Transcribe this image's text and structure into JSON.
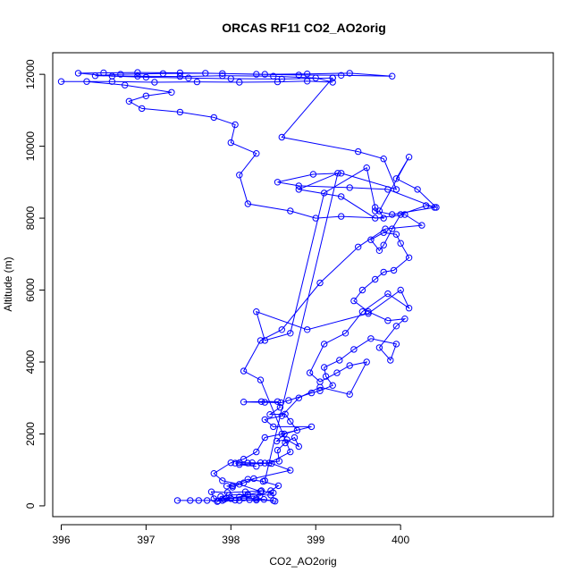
{
  "chart_data": {
    "type": "line",
    "title": "ORCAS RF11 CO2_AO2orig",
    "xlabel": "CO2_AO2orig",
    "ylabel": "Altitude (m)",
    "xlim": [
      395.9,
      401.8
    ],
    "ylim": [
      -300,
      12600
    ],
    "xticks": [
      396,
      397,
      398,
      399,
      400
    ],
    "yticks": [
      0,
      2000,
      4000,
      6000,
      8000,
      10000,
      12000
    ],
    "grid": false,
    "legend": "none",
    "line_color": "#0000ff",
    "series": [
      {
        "style": "line+points",
        "points": [
          [
            397.37,
            150
          ],
          [
            397.52,
            150
          ],
          [
            397.62,
            150
          ],
          [
            397.72,
            150
          ],
          [
            397.9,
            150
          ],
          [
            398.05,
            160
          ],
          [
            398.22,
            170
          ],
          [
            398.39,
            180
          ],
          [
            398.52,
            130
          ],
          [
            398.3,
            200
          ],
          [
            398.15,
            220
          ],
          [
            397.95,
            210
          ],
          [
            397.8,
            200
          ],
          [
            397.77,
            390
          ],
          [
            397.96,
            370
          ],
          [
            398.17,
            390
          ],
          [
            398.36,
            420
          ],
          [
            398.5,
            360
          ],
          [
            398.47,
            300
          ],
          [
            398.2,
            320
          ],
          [
            397.98,
            300
          ],
          [
            397.88,
            260
          ],
          [
            397.84,
            120
          ],
          [
            397.92,
            180
          ],
          [
            398.1,
            250
          ],
          [
            398.34,
            280
          ],
          [
            398.47,
            420
          ],
          [
            398.56,
            560
          ],
          [
            398.38,
            680
          ],
          [
            398.2,
            740
          ],
          [
            398.02,
            560
          ],
          [
            397.95,
            550
          ],
          [
            398.02,
            520
          ],
          [
            398.15,
            640
          ],
          [
            398.27,
            760
          ],
          [
            398.7,
            990
          ],
          [
            398.48,
            1180
          ],
          [
            398.35,
            1200
          ],
          [
            398.2,
            1190
          ],
          [
            398.05,
            1190
          ],
          [
            398.1,
            1200
          ],
          [
            398.25,
            1200
          ],
          [
            398.4,
            1190
          ],
          [
            398.57,
            1240
          ],
          [
            398.55,
            1550
          ],
          [
            398.64,
            1750
          ],
          [
            398.75,
            1900
          ],
          [
            398.8,
            1650
          ],
          [
            398.66,
            1840
          ],
          [
            398.54,
            1800
          ],
          [
            398.63,
            2000
          ],
          [
            398.78,
            2100
          ],
          [
            398.7,
            2350
          ],
          [
            398.64,
            2550
          ],
          [
            398.46,
            2540
          ],
          [
            398.58,
            2740
          ],
          [
            398.55,
            2900
          ],
          [
            398.36,
            2900
          ],
          [
            398.15,
            2890
          ],
          [
            398.4,
            2880
          ],
          [
            398.59,
            2870
          ],
          [
            398.68,
            2930
          ],
          [
            398.95,
            3140
          ],
          [
            399.05,
            3200
          ],
          [
            399.2,
            3350
          ],
          [
            399.12,
            3600
          ],
          [
            399.1,
            3850
          ],
          [
            399.28,
            4050
          ],
          [
            399.45,
            4350
          ],
          [
            399.65,
            4650
          ],
          [
            399.95,
            4500
          ],
          [
            399.88,
            4050
          ],
          [
            399.75,
            4400
          ],
          [
            399.95,
            5000
          ],
          [
            400.05,
            5200
          ],
          [
            399.85,
            5150
          ],
          [
            399.62,
            5400
          ],
          [
            399.45,
            5700
          ],
          [
            399.55,
            6000
          ],
          [
            399.7,
            6300
          ],
          [
            399.8,
            6500
          ],
          [
            399.92,
            6550
          ],
          [
            400.1,
            6900
          ],
          [
            400.0,
            7300
          ],
          [
            399.95,
            7550
          ],
          [
            399.8,
            7600
          ],
          [
            399.65,
            7400
          ],
          [
            399.75,
            7100
          ],
          [
            399.8,
            7250
          ],
          [
            399.9,
            7700
          ],
          [
            400.0,
            8100
          ],
          [
            400.3,
            8350
          ],
          [
            400.42,
            8300
          ],
          [
            400.2,
            8800
          ],
          [
            399.95,
            9100
          ],
          [
            400.1,
            9700
          ],
          [
            399.75,
            8200
          ],
          [
            399.8,
            8000
          ],
          [
            399.3,
            8050
          ],
          [
            399.0,
            8000
          ],
          [
            398.7,
            8200
          ],
          [
            398.2,
            8400
          ],
          [
            398.1,
            9200
          ],
          [
            398.3,
            9800
          ],
          [
            398.0,
            10100
          ],
          [
            398.05,
            10600
          ],
          [
            397.8,
            10800
          ],
          [
            397.4,
            10950
          ],
          [
            396.95,
            11050
          ],
          [
            396.8,
            11250
          ],
          [
            397.0,
            11400
          ],
          [
            397.3,
            11500
          ],
          [
            396.75,
            11700
          ],
          [
            396.3,
            11800
          ],
          [
            396.0,
            11800
          ],
          [
            396.6,
            11800
          ],
          [
            397.1,
            11780
          ],
          [
            397.6,
            11790
          ],
          [
            398.1,
            11780
          ],
          [
            398.55,
            11790
          ],
          [
            398.9,
            11810
          ],
          [
            399.2,
            11780
          ],
          [
            399.0,
            11900
          ],
          [
            398.5,
            11950
          ],
          [
            397.9,
            11960
          ],
          [
            397.4,
            11940
          ],
          [
            396.9,
            11950
          ],
          [
            396.4,
            11960
          ],
          [
            396.7,
            12000
          ],
          [
            397.2,
            12020
          ],
          [
            397.7,
            12030
          ],
          [
            398.3,
            12000
          ],
          [
            398.8,
            11980
          ],
          [
            399.3,
            11970
          ],
          [
            399.9,
            11950
          ],
          [
            399.4,
            12030
          ],
          [
            398.9,
            12010
          ],
          [
            398.4,
            12000
          ],
          [
            397.9,
            12020
          ],
          [
            397.4,
            12040
          ],
          [
            396.9,
            12050
          ],
          [
            396.5,
            12040
          ],
          [
            396.2,
            12030
          ],
          [
            396.6,
            11950
          ],
          [
            397.0,
            11920
          ],
          [
            397.5,
            11900
          ],
          [
            398.0,
            11880
          ],
          [
            398.6,
            11870
          ],
          [
            399.2,
            11900
          ]
        ]
      },
      {
        "style": "line+points",
        "points": [
          [
            399.2,
            11900
          ],
          [
            398.6,
            10250
          ],
          [
            399.5,
            9850
          ],
          [
            399.8,
            9650
          ],
          [
            399.95,
            8800
          ],
          [
            399.3,
            9250
          ],
          [
            398.97,
            9220
          ],
          [
            398.55,
            9000
          ],
          [
            398.8,
            8900
          ],
          [
            399.4,
            8850
          ],
          [
            399.85,
            8800
          ],
          [
            400.4,
            8300
          ],
          [
            399.9,
            8100
          ],
          [
            399.7,
            8200
          ],
          [
            399.7,
            8300
          ],
          [
            399.6,
            9400
          ],
          [
            399.1,
            8700
          ],
          [
            398.7,
            4800
          ],
          [
            398.4,
            4600
          ],
          [
            398.3,
            5400
          ],
          [
            398.9,
            4900
          ],
          [
            399.62,
            5350
          ],
          [
            400.0,
            6000
          ],
          [
            400.1,
            5500
          ],
          [
            399.85,
            5900
          ],
          [
            399.55,
            5400
          ],
          [
            399.35,
            4800
          ],
          [
            399.1,
            4500
          ],
          [
            398.93,
            3700
          ],
          [
            399.05,
            3450
          ],
          [
            399.25,
            3700
          ],
          [
            399.4,
            3900
          ],
          [
            399.6,
            4000
          ],
          [
            399.4,
            3100
          ],
          [
            399.05,
            3300
          ],
          [
            398.8,
            3000
          ],
          [
            398.6,
            2500
          ],
          [
            398.4,
            2400
          ],
          [
            398.5,
            2200
          ],
          [
            398.95,
            2200
          ],
          [
            398.6,
            2000
          ],
          [
            398.4,
            1900
          ],
          [
            398.3,
            1500
          ],
          [
            398.15,
            1300
          ],
          [
            398.0,
            1200
          ],
          [
            397.8,
            900
          ],
          [
            397.9,
            700
          ],
          [
            398.1,
            600
          ],
          [
            398.35,
            400
          ],
          [
            398.2,
            300
          ],
          [
            398.0,
            200
          ],
          [
            397.85,
            140
          ],
          [
            398.1,
            150
          ],
          [
            398.3,
            160
          ],
          [
            398.5,
            150
          ]
        ]
      },
      {
        "style": "line+points",
        "points": [
          [
            398.3,
            1100
          ],
          [
            398.1,
            1150
          ],
          [
            398.45,
            1190
          ],
          [
            398.7,
            1500
          ],
          [
            398.35,
            3500
          ],
          [
            398.15,
            3750
          ],
          [
            398.35,
            4600
          ],
          [
            398.6,
            4900
          ],
          [
            399.05,
            6200
          ],
          [
            399.5,
            7200
          ],
          [
            399.82,
            7700
          ],
          [
            400.25,
            7800
          ],
          [
            400.05,
            8100
          ],
          [
            399.7,
            8000
          ],
          [
            399.3,
            8600
          ],
          [
            398.8,
            8800
          ],
          [
            399.26,
            9250
          ],
          [
            398.4,
            700
          ]
        ]
      }
    ]
  }
}
